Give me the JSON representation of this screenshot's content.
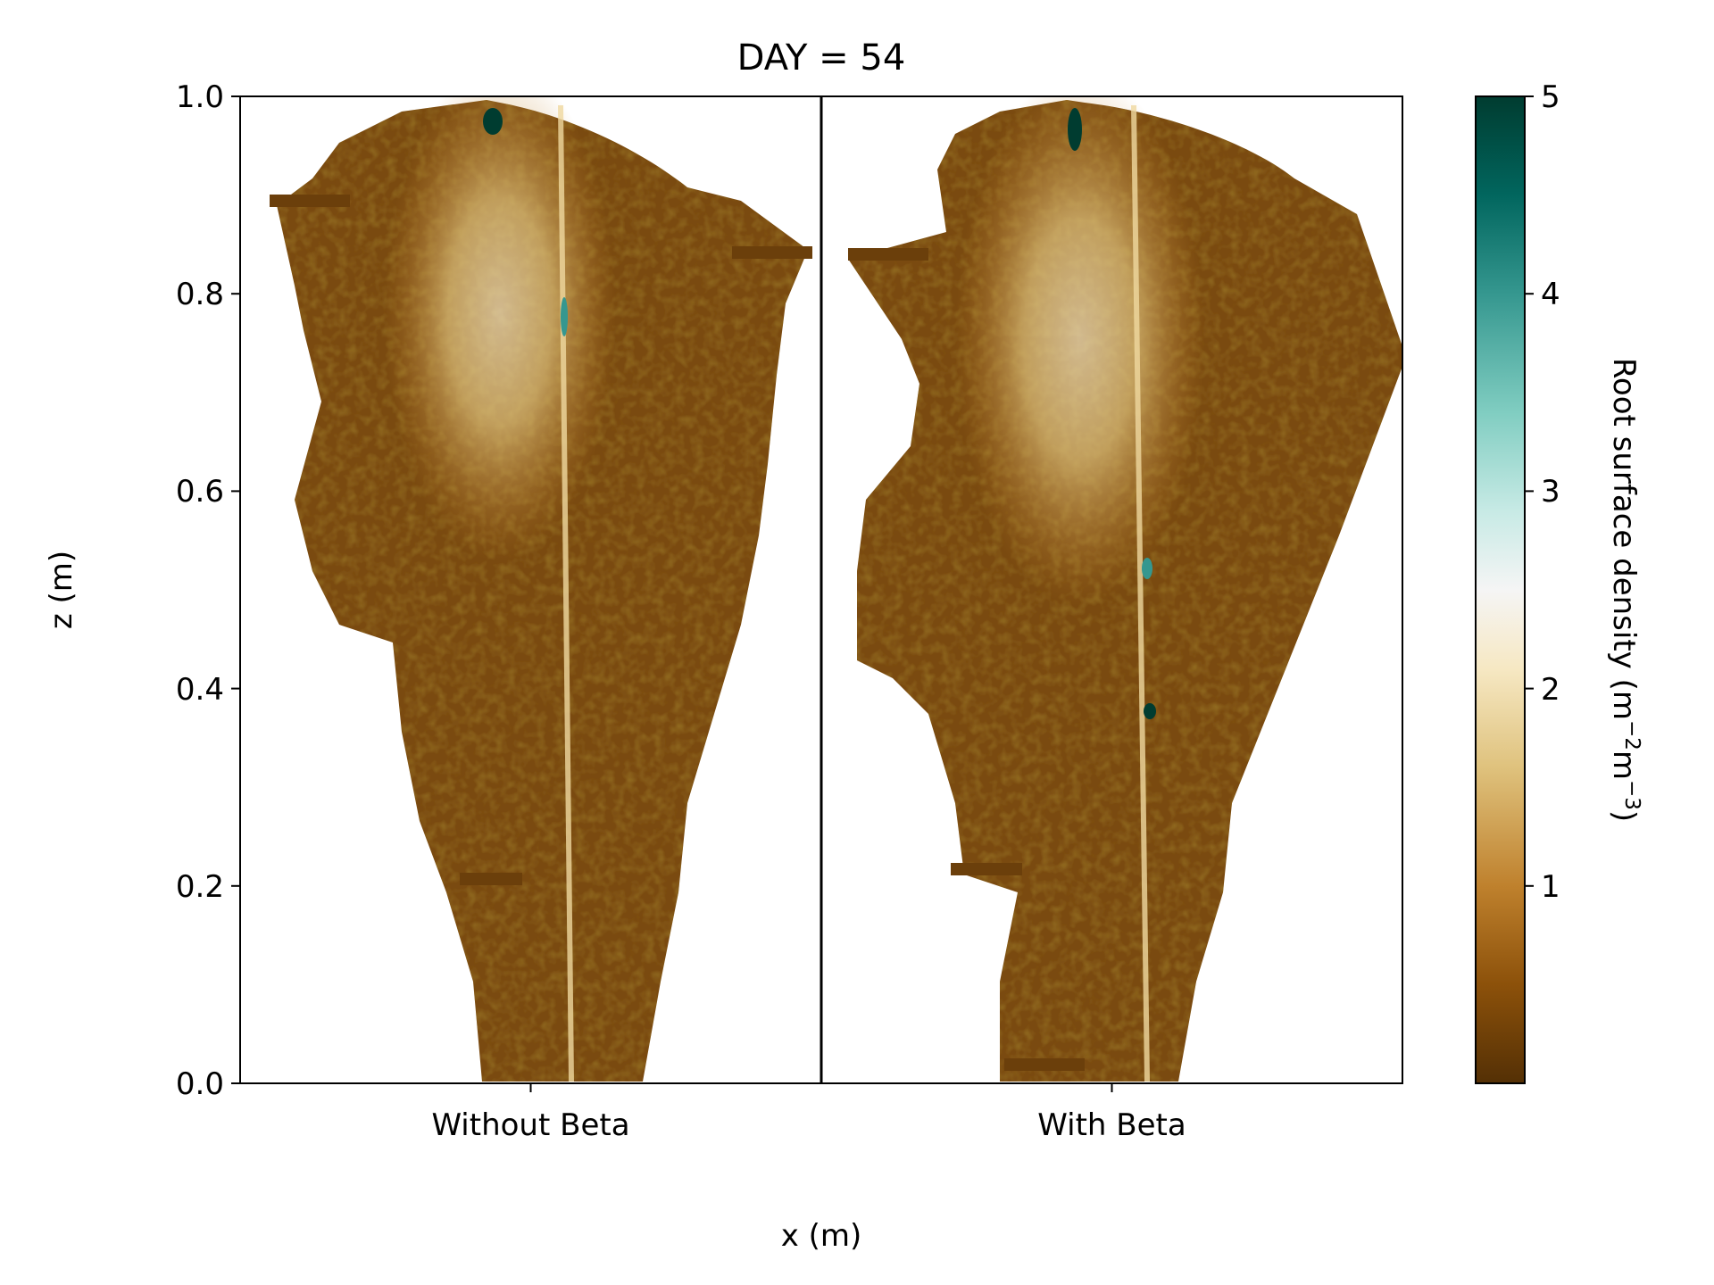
{
  "chart_data": {
    "type": "heatmap",
    "title": "DAY = 54",
    "xlabel": "x (m)",
    "ylabel": "z (m)",
    "ylim": [
      0.0,
      1.0
    ],
    "y_ticks": [
      "0.0",
      "0.2",
      "0.4",
      "0.6",
      "0.8",
      "1.0"
    ],
    "panels": [
      {
        "label": "Without Beta"
      },
      {
        "label": "With Beta"
      }
    ],
    "colorbar": {
      "label_main": "Root surface density (m",
      "exp1": "−2",
      "label_mid": "m",
      "exp2": "−3",
      "label_end": ")",
      "ticks": [
        "1",
        "2",
        "3",
        "4",
        "5"
      ],
      "range": [
        0,
        5
      ],
      "colormap": "BrBG",
      "stops": [
        "#543005",
        "#8c510a",
        "#bf812d",
        "#dfc27d",
        "#f6e8c3",
        "#f5f5f5",
        "#c7eae5",
        "#80cdc1",
        "#35978f",
        "#01665e",
        "#003c30"
      ]
    },
    "grid": false
  }
}
